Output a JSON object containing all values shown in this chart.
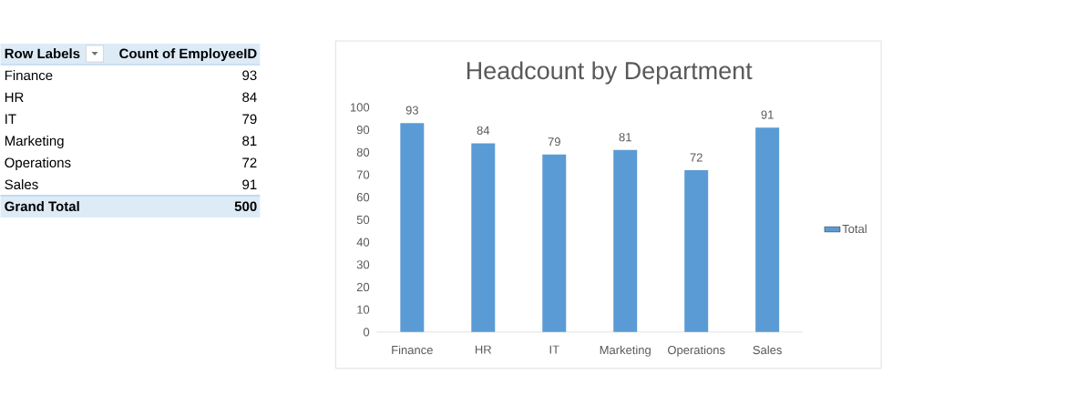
{
  "chart_data": [
    {
      "type": "other",
      "xlabel": "Row Labels",
      "ylabel": "Count of EmployeeID",
      "categories": [
        "Finance",
        "HR",
        "IT",
        "Marketing",
        "Operations",
        "Sales"
      ],
      "values": [
        93,
        84,
        79,
        81,
        72,
        91
      ],
      "data_labels": true,
      "annotations": [
        "Grand Total"
      ],
      "totals": [
        "500"
      ]
    },
    {
      "type": "bar",
      "title": "Headcount by Department",
      "categories": [
        "Finance",
        "HR",
        "IT",
        "Marketing",
        "Operations",
        "Sales"
      ],
      "series": [
        {
          "name": "Total",
          "color": "#5b9bd5",
          "values": [
            93,
            84,
            79,
            81,
            72,
            91
          ]
        }
      ],
      "ylim": [
        0,
        100
      ],
      "yticks": [
        0,
        10,
        20,
        30,
        40,
        50,
        60,
        70,
        80,
        90,
        100
      ],
      "legend": "right",
      "data_labels": true
    }
  ]
}
